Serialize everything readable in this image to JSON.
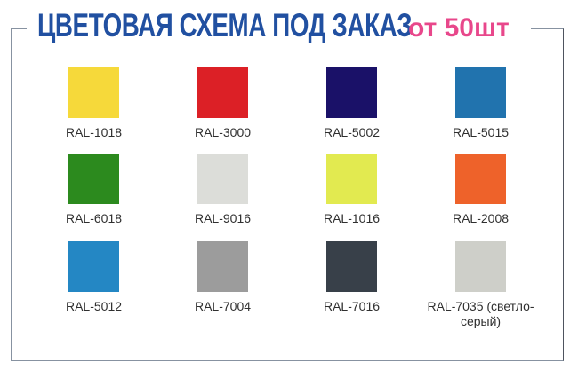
{
  "title": {
    "main": "ЦВЕТОВАЯ СХЕМА ПОД ЗАКАЗ",
    "accent": "от 50шт"
  },
  "colors": {
    "title_blue": "#2150A1",
    "accent_pink": "#E8478B",
    "frame_gray": "#8792A1",
    "label_text": "#2F2F2F"
  },
  "swatches": [
    {
      "label": "RAL-1018",
      "color": "#F6D93A"
    },
    {
      "label": "RAL-3000",
      "color": "#DC2026"
    },
    {
      "label": "RAL-5002",
      "color": "#1A1168"
    },
    {
      "label": "RAL-5015",
      "color": "#2173AE"
    },
    {
      "label": "RAL-6018",
      "color": "#2C8A1E"
    },
    {
      "label": "RAL-9016",
      "color": "#DCDDD9"
    },
    {
      "label": "RAL-1016",
      "color": "#E2EA50"
    },
    {
      "label": "RAL-2008",
      "color": "#EE622A"
    },
    {
      "label": "RAL-5012",
      "color": "#2487C4"
    },
    {
      "label": "RAL-7004",
      "color": "#9C9C9C"
    },
    {
      "label": "RAL-7016",
      "color": "#384049"
    },
    {
      "label": "RAL-7035 (светло-серый)",
      "color": "#CECFC9"
    }
  ]
}
